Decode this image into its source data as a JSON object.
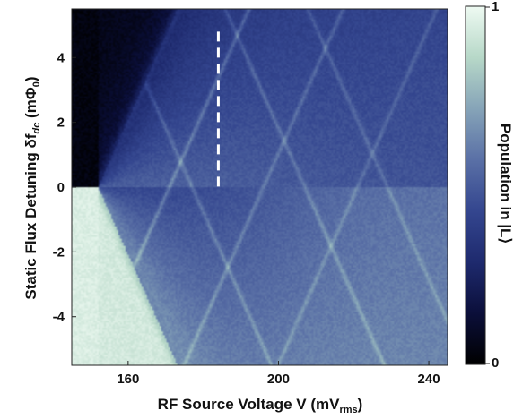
{
  "chart_data": {
    "type": "heatmap",
    "xlabel": "RF Source Voltage V (mV",
    "xlabel_sub": "rms",
    "xlabel_end": ")",
    "ylabel": "Static Flux Detuning δf",
    "ylabel_sub": "dc",
    "ylabel_end": " (mΦ",
    "ylabel_sub2": "0",
    "ylabel_close": ")",
    "xlim": [
      145,
      245
    ],
    "ylim": [
      -5.5,
      5.5
    ],
    "x_ticks": [
      160,
      200,
      240
    ],
    "x_tick_labels": [
      "160",
      "200",
      "240"
    ],
    "y_ticks": [
      4,
      2,
      0,
      -2,
      -4
    ],
    "y_tick_labels": [
      "4",
      "2",
      "0",
      "-2",
      "-4"
    ],
    "colorbar": {
      "label": "Population in |L⟩",
      "range": [
        0,
        1
      ],
      "tick_labels": [
        "1",
        "0"
      ],
      "colors": [
        "#000000",
        "#0b0f3a",
        "#1e2a6e",
        "#34468f",
        "#5a70a6",
        "#86a4b8",
        "#b7d8c8",
        "#eefaf2"
      ]
    },
    "threshold_line": {
      "intercept_x": 152,
      "slope": 0.26
    },
    "resonance_lines_rising": [
      {
        "x_at_zero": 171,
        "strength": 0.15
      },
      {
        "x_at_zero": 196,
        "strength": 0.12
      },
      {
        "x_at_zero": 221,
        "strength": 0.1
      }
    ],
    "resonance_lines_falling": [
      {
        "x_at_zero": 177,
        "strength": 0.12
      },
      {
        "x_at_zero": 207,
        "strength": 0.12
      },
      {
        "x_at_zero": 229,
        "strength": 0.1
      }
    ],
    "dashed_marker": {
      "x": 184,
      "y_range": [
        0,
        4.8
      ],
      "color": "#ffffff"
    }
  }
}
